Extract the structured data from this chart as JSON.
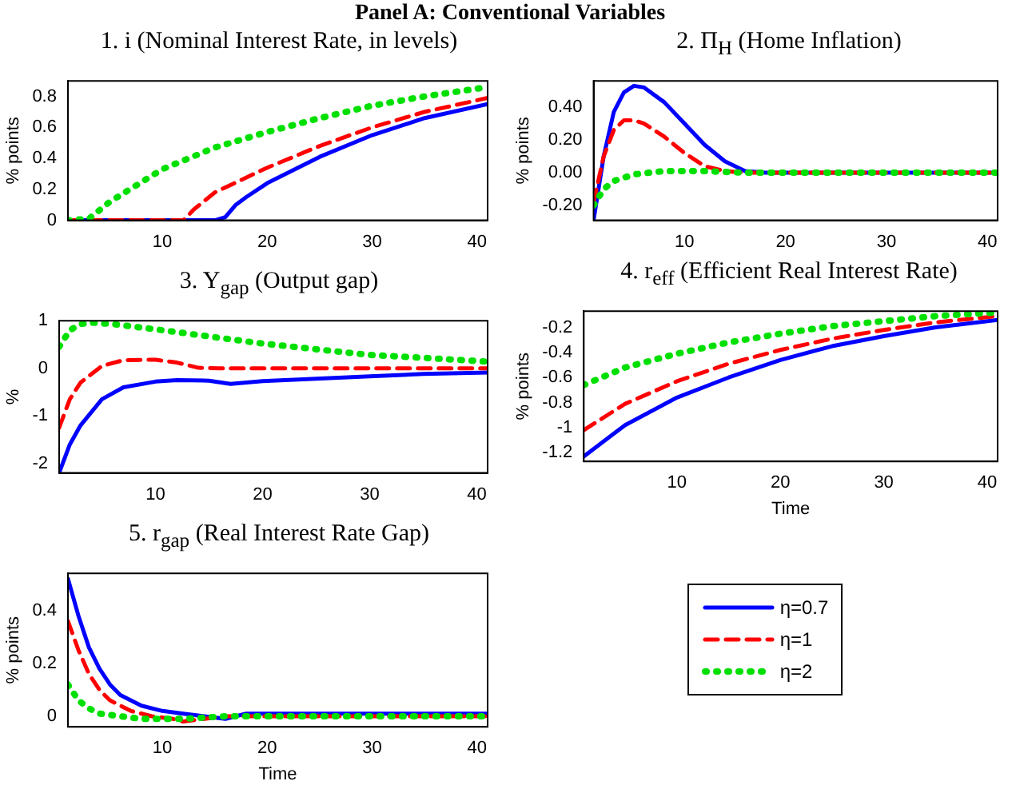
{
  "chart_data": [
    {
      "type": "line",
      "title": "1. i (Nominal Interest Rate, in levels)",
      "ylabel": "% points",
      "annotations": [
        "Panel A: Conventional Variables"
      ],
      "xlim": [
        1,
        41
      ],
      "xticks": [
        10,
        20,
        30,
        40
      ],
      "ylim": [
        0,
        0.9
      ],
      "yticks": [
        0,
        0.2,
        0.4,
        0.6,
        0.8
      ],
      "grid": false,
      "legend": false,
      "series": [
        {
          "color": "#0000ff",
          "line_style": "solid",
          "x": [
            1,
            5,
            10,
            15,
            16,
            17,
            18,
            20,
            25,
            30,
            35,
            41
          ],
          "values": [
            0,
            0,
            0,
            0,
            0.02,
            0.1,
            0.15,
            0.24,
            0.41,
            0.55,
            0.66,
            0.75
          ]
        },
        {
          "color": "#ff0000",
          "line_style": "dashed",
          "x": [
            1,
            5,
            10,
            12,
            13,
            15,
            20,
            25,
            30,
            35,
            41
          ],
          "values": [
            0,
            0,
            0,
            0,
            0.07,
            0.18,
            0.34,
            0.48,
            0.6,
            0.7,
            0.79
          ]
        },
        {
          "color": "#00e000",
          "line_style": "dotted",
          "x": [
            1,
            3,
            5,
            10,
            15,
            20,
            25,
            30,
            35,
            41
          ],
          "values": [
            0,
            0.01,
            0.12,
            0.33,
            0.47,
            0.57,
            0.66,
            0.74,
            0.8,
            0.86
          ]
        }
      ]
    },
    {
      "type": "line",
      "title": "2. Π$_{H}$ (Home Inflation)",
      "ylabel": "% points",
      "xlim": [
        1,
        41
      ],
      "xticks": [
        10,
        20,
        30,
        40
      ],
      "ylim": [
        -0.29,
        0.56
      ],
      "yticks": [
        {
          "value": -0.2,
          "label": "-0.20"
        },
        {
          "value": 0,
          "label": "0.00"
        },
        {
          "value": 0.2,
          "label": "0.20"
        },
        {
          "value": 0.4,
          "label": "0.40"
        }
      ],
      "grid": false,
      "legend": false,
      "series": [
        {
          "color": "#0000ff",
          "line_style": "solid",
          "x": [
            1,
            2,
            3,
            4,
            5,
            6,
            8,
            10,
            12,
            14,
            16,
            18,
            41
          ],
          "values": [
            -0.29,
            0.1,
            0.37,
            0.49,
            0.53,
            0.52,
            0.43,
            0.3,
            0.17,
            0.07,
            0.01,
            0,
            0
          ]
        },
        {
          "color": "#ff0000",
          "line_style": "dashed",
          "x": [
            1,
            2,
            3,
            4,
            5,
            6,
            8,
            10,
            12,
            14,
            16,
            41
          ],
          "values": [
            -0.18,
            0.1,
            0.26,
            0.32,
            0.32,
            0.3,
            0.22,
            0.12,
            0.04,
            0.01,
            0,
            0
          ]
        },
        {
          "color": "#00e000",
          "line_style": "dotted",
          "x": [
            1,
            2,
            3,
            5,
            8,
            12,
            16,
            41
          ],
          "values": [
            -0.2,
            -0.1,
            -0.05,
            -0.01,
            0.01,
            0.01,
            0,
            0
          ]
        }
      ]
    },
    {
      "type": "line",
      "title": "3. Y$_{gap}$ (Output gap)",
      "ylabel": "%",
      "xlim": [
        1,
        41
      ],
      "xticks": [
        10,
        20,
        30,
        40
      ],
      "ylim": [
        -2.2,
        1
      ],
      "yticks": [
        -2,
        -1,
        0,
        1
      ],
      "grid": false,
      "legend": false,
      "series": [
        {
          "color": "#0000ff",
          "line_style": "solid",
          "x": [
            1,
            2,
            3,
            5,
            7,
            10,
            12,
            15,
            17,
            20,
            25,
            30,
            35,
            41
          ],
          "values": [
            -2.2,
            -1.6,
            -1.2,
            -0.65,
            -0.4,
            -0.28,
            -0.25,
            -0.26,
            -0.33,
            -0.27,
            -0.22,
            -0.17,
            -0.12,
            -0.09
          ]
        },
        {
          "color": "#ff0000",
          "line_style": "dashed",
          "x": [
            1,
            2,
            3,
            5,
            7,
            10,
            12,
            14,
            16,
            41
          ],
          "values": [
            -1.25,
            -0.65,
            -0.3,
            0.05,
            0.17,
            0.18,
            0.12,
            0.01,
            0,
            0
          ]
        },
        {
          "color": "#00e000",
          "line_style": "dotted",
          "x": [
            1,
            2,
            3,
            4,
            6,
            10,
            15,
            20,
            25,
            30,
            35,
            41
          ],
          "values": [
            0.45,
            0.8,
            0.93,
            0.96,
            0.93,
            0.82,
            0.67,
            0.52,
            0.4,
            0.28,
            0.22,
            0.14
          ]
        }
      ]
    },
    {
      "type": "line",
      "title": "4. r$_{eff}$ (Efficient Real Interest Rate)",
      "ylabel": "% points",
      "xlabel": "Time",
      "xlim": [
        1,
        41
      ],
      "xticks": [
        10,
        20,
        30,
        40
      ],
      "ylim": [
        -1.27,
        -0.07
      ],
      "yticks": [
        -1.2,
        -1,
        -0.8,
        -0.6,
        -0.4,
        -0.2
      ],
      "grid": false,
      "legend": false,
      "series": [
        {
          "color": "#0000ff",
          "line_style": "solid",
          "x": [
            1,
            5,
            10,
            15,
            20,
            25,
            30,
            35,
            41
          ],
          "values": [
            -1.23,
            -0.98,
            -0.76,
            -0.6,
            -0.46,
            -0.35,
            -0.27,
            -0.2,
            -0.14
          ]
        },
        {
          "color": "#ff0000",
          "line_style": "dashed",
          "x": [
            1,
            5,
            10,
            15,
            20,
            25,
            30,
            35,
            41
          ],
          "values": [
            -1.02,
            -0.81,
            -0.63,
            -0.49,
            -0.38,
            -0.29,
            -0.22,
            -0.16,
            -0.11
          ]
        },
        {
          "color": "#00e000",
          "line_style": "dotted",
          "x": [
            1,
            5,
            10,
            15,
            20,
            25,
            30,
            35,
            41
          ],
          "values": [
            -0.66,
            -0.52,
            -0.41,
            -0.32,
            -0.25,
            -0.19,
            -0.15,
            -0.11,
            -0.08
          ]
        }
      ]
    },
    {
      "type": "line",
      "title": "5. r$_{gap}$ (Real Interest Rate Gap)",
      "ylabel": "% points",
      "xlabel": "Time",
      "xlim": [
        1,
        41
      ],
      "xticks": [
        10,
        20,
        30,
        40
      ],
      "ylim": [
        -0.04,
        0.54
      ],
      "yticks": [
        0,
        0.2,
        0.4
      ],
      "grid": false,
      "legend": "right",
      "series": [
        {
          "name": "η=0.7",
          "color": "#0000ff",
          "line_style": "solid",
          "x": [
            1,
            2,
            3,
            4,
            5,
            6,
            8,
            10,
            12,
            14,
            16,
            17,
            18,
            20,
            25,
            30,
            41
          ],
          "values": [
            0.52,
            0.38,
            0.26,
            0.18,
            0.12,
            0.08,
            0.04,
            0.02,
            0.01,
            0,
            -0.01,
            0,
            0.01,
            0.01,
            0.01,
            0.01,
            0.01
          ]
        },
        {
          "name": "η=1",
          "color": "#ff0000",
          "line_style": "dashed",
          "x": [
            1,
            2,
            3,
            4,
            5,
            7,
            9,
            11,
            12,
            14,
            16,
            20,
            41
          ],
          "values": [
            0.36,
            0.25,
            0.16,
            0.1,
            0.06,
            0.02,
            0,
            -0.01,
            -0.02,
            -0.01,
            0,
            0,
            0
          ]
        },
        {
          "name": "η=2",
          "color": "#00e000",
          "line_style": "dotted",
          "x": [
            1,
            2,
            3,
            4,
            6,
            8,
            12,
            16,
            41
          ],
          "values": [
            0.12,
            0.06,
            0.03,
            0.01,
            0,
            -0.01,
            -0.01,
            0,
            0
          ]
        }
      ]
    }
  ]
}
